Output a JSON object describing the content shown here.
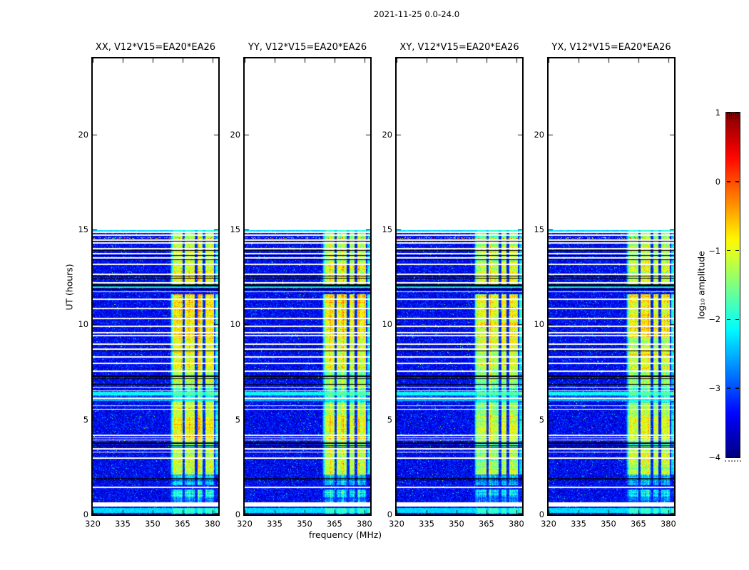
{
  "chart_data": {
    "type": "heatmap",
    "suptitle": "2021-11-25 0.0-24.0",
    "xlabel": "frequency (MHz)",
    "ylabel": "UT (hours)",
    "colorbar_label": "log₁₀ amplitude",
    "colormap": "jet",
    "colorbar_range": [
      -4,
      1
    ],
    "colorbar_tick_values": [
      1,
      0,
      -1,
      -2,
      -3,
      -4
    ],
    "colorbar_tick_labels": [
      "1",
      "0",
      "−1",
      "−2",
      "−3",
      "−4"
    ],
    "x_tick_values": [
      320,
      335,
      350,
      365,
      380
    ],
    "x_tick_labels": [
      "320",
      "335",
      "350",
      "365",
      "380"
    ],
    "y_tick_values": [
      0,
      5,
      10,
      15,
      20
    ],
    "y_tick_labels": [
      "0",
      "5",
      "10",
      "15",
      "20"
    ],
    "x_range": [
      320,
      382.9
    ],
    "y_range": [
      0,
      24
    ],
    "data_time_extent": [
      0,
      14.95
    ],
    "panels": [
      {
        "title": "XX, V12*V15=EA20*EA26",
        "seed": 17,
        "band_gain": 1.0
      },
      {
        "title": "YY, V12*V15=EA20*EA26",
        "seed": 42,
        "band_gain": 0.95
      },
      {
        "title": "XY, V12*V15=EA20*EA26",
        "seed": 73,
        "band_gain": 0.9
      },
      {
        "title": "YX, V12*V15=EA20*EA26",
        "seed": 99,
        "band_gain": 0.92
      }
    ],
    "noise": {
      "mean": -3.4,
      "sigma": 0.28,
      "speckle_chance": 0.013
    },
    "rfi_band": {
      "f_start": 358.8,
      "f_ramp_end": 360.5,
      "f_end": 383,
      "gaps": [
        [
          365.0,
          366.2
        ],
        [
          371.2,
          372.4
        ],
        [
          375.1,
          376.3
        ],
        [
          380.8,
          381.6
        ]
      ],
      "edge_cyan_start": 381.6,
      "intensity_profile": [
        [
          0.05,
          0.35,
          -2.1
        ],
        [
          0.65,
          0.95,
          -2.7
        ],
        [
          0.95,
          1.3,
          -2.1
        ],
        [
          1.55,
          2.1,
          -2.4
        ],
        [
          2.1,
          3.5,
          -1.15
        ],
        [
          3.5,
          3.85,
          -1.6
        ],
        [
          3.85,
          5.2,
          -0.95
        ],
        [
          5.2,
          5.9,
          -1.25
        ],
        [
          5.9,
          6.65,
          -1.9
        ],
        [
          6.65,
          7.6,
          -1.35
        ],
        [
          7.6,
          9.35,
          -1.0
        ],
        [
          9.35,
          11.6,
          -0.8
        ],
        [
          12.1,
          13.1,
          -0.92
        ],
        [
          13.1,
          14.5,
          -1.15
        ],
        [
          14.5,
          14.95,
          -1.4
        ]
      ]
    },
    "white_rows": [
      [
        14.85,
        0.07
      ],
      [
        14.7,
        0.07
      ],
      [
        14.44,
        0.05
      ],
      [
        14.29,
        0.07
      ],
      [
        13.99,
        0.07
      ],
      [
        13.72,
        0.07
      ],
      [
        13.5,
        0.05
      ],
      [
        13.16,
        0.05
      ],
      [
        12.64,
        0.07
      ],
      [
        12.19,
        0.06
      ],
      [
        11.72,
        0.06
      ],
      [
        11.33,
        0.07
      ],
      [
        10.84,
        0.05
      ],
      [
        10.31,
        0.05
      ],
      [
        9.9,
        0.05
      ],
      [
        9.55,
        0.07
      ],
      [
        9.42,
        0.07
      ],
      [
        8.96,
        0.05
      ],
      [
        8.7,
        0.05
      ],
      [
        8.3,
        0.07
      ],
      [
        7.95,
        0.05
      ],
      [
        7.55,
        0.08
      ],
      [
        6.7,
        0.05
      ],
      [
        6.5,
        0.05
      ],
      [
        6.12,
        0.07
      ],
      [
        5.72,
        0.07
      ],
      [
        5.52,
        0.05
      ],
      [
        4.17,
        0.07
      ],
      [
        4.03,
        0.05
      ],
      [
        3.92,
        0.05
      ],
      [
        3.45,
        0.05
      ],
      [
        3.28,
        0.05
      ],
      [
        2.95,
        0.07
      ],
      [
        1.42,
        0.07
      ],
      [
        0.52,
        0.25
      ]
    ],
    "black_rows": [
      [
        14.37,
        0.04
      ],
      [
        13.88,
        0.04
      ],
      [
        13.62,
        0.04
      ],
      [
        13.4,
        0.04
      ],
      [
        12.55,
        0.05
      ],
      [
        12.42,
        0.04
      ],
      [
        12.05,
        0.1
      ],
      [
        11.85,
        0.1
      ],
      [
        8.6,
        0.05
      ],
      [
        7.28,
        0.05
      ],
      [
        7.15,
        0.04
      ],
      [
        6.85,
        0.04
      ],
      [
        3.75,
        0.05
      ],
      [
        3.62,
        0.04
      ],
      [
        3.55,
        0.04
      ],
      [
        1.9,
        0.05
      ],
      [
        1.82,
        0.04
      ]
    ],
    "cyan_rows": [
      [
        14.92,
        0.07,
        -2.35
      ],
      [
        11.95,
        0.08,
        -2.2
      ],
      [
        6.35,
        0.2,
        -2.1
      ],
      [
        6.02,
        0.08,
        -2.5
      ],
      [
        0.2,
        0.25,
        -2.3
      ]
    ],
    "speckle_rows": [
      [
        14.55,
        0.08
      ]
    ],
    "background_boost": [
      [
        5.95,
        6.5,
        -3.05
      ]
    ]
  }
}
